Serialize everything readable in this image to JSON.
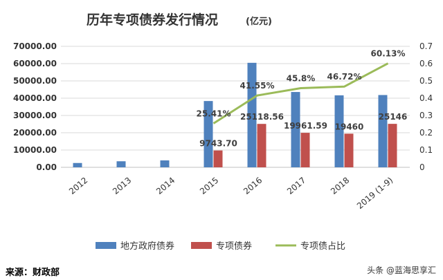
{
  "chart_data": {
    "type": "bar",
    "title": "历年专项债券发行情况",
    "title_unit": "(亿元)",
    "categories": [
      "2012",
      "2013",
      "2014",
      "2015",
      "2016",
      "2017",
      "2018",
      "2019 (1-9)"
    ],
    "series": [
      {
        "name": "地方政府债券",
        "kind": "bar",
        "axis": "left",
        "color": "#4f81bd",
        "values": [
          2500,
          3500,
          4000,
          38350,
          60460,
          43580,
          41650,
          41820
        ]
      },
      {
        "name": "专项债券",
        "kind": "bar",
        "axis": "left",
        "color": "#c0504d",
        "values": [
          0,
          0,
          0,
          9743.7,
          25118.56,
          19961.59,
          19460,
          25146
        ]
      },
      {
        "name": "专项债占比",
        "kind": "line",
        "axis": "right",
        "color": "#9bbb59",
        "values": [
          null,
          null,
          null,
          0.2541,
          0.4155,
          0.458,
          0.4672,
          0.6013
        ]
      }
    ],
    "bar_labels": [
      "",
      "",
      "",
      "9743.70",
      "25118.56",
      "19961.59",
      "19460",
      "25146"
    ],
    "line_labels": [
      "",
      "",
      "",
      "25.41%",
      "41.55%",
      "45.8%",
      "46.72%",
      "60.13%"
    ],
    "y_left": {
      "range": [
        0,
        70000
      ],
      "ticks": [
        "0.00",
        "10000.00",
        "20000.00",
        "30000.00",
        "40000.00",
        "50000.00",
        "60000.00",
        "70000.00"
      ]
    },
    "y_right": {
      "range": [
        0,
        0.7
      ],
      "ticks": [
        "0",
        "0.1",
        "0.2",
        "0.3",
        "0.4",
        "0.5",
        "0.6",
        "0.7"
      ]
    },
    "grid": true,
    "legend_position": "bottom"
  },
  "footer": {
    "source": "来源：财政部",
    "watermark": "头条 @蓝海思享汇"
  }
}
